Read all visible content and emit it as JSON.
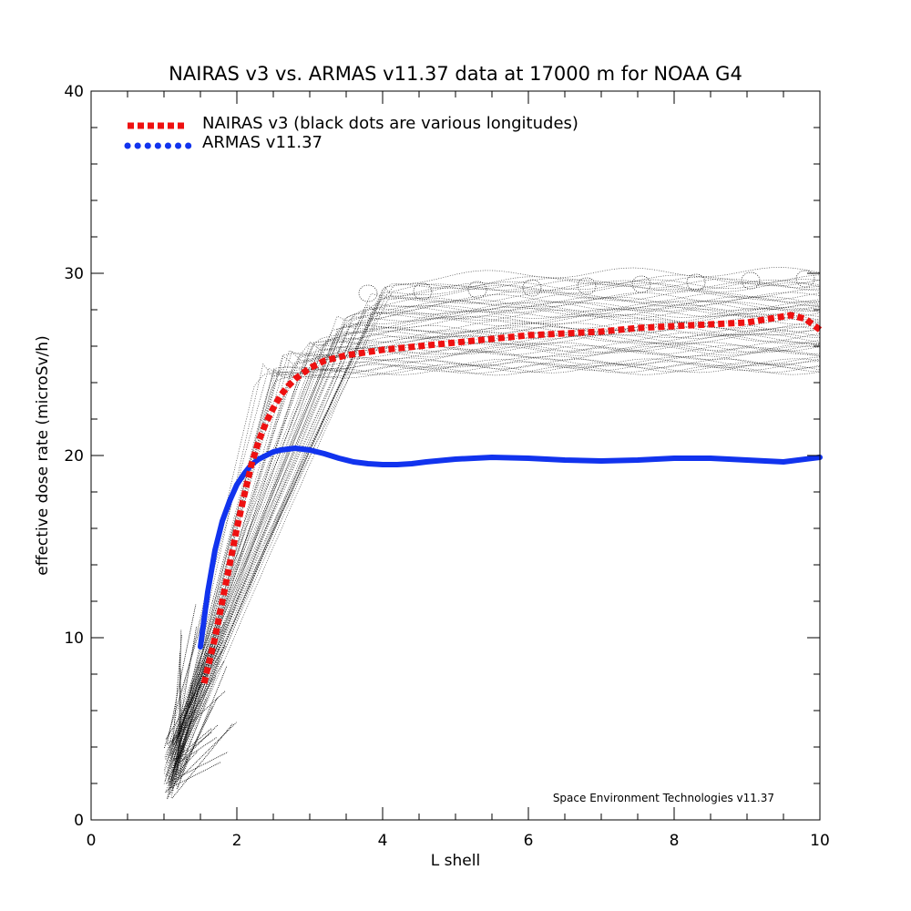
{
  "chart_data": {
    "type": "line",
    "title": "NAIRAS  v3 vs. ARMAS v11.37 data at 17000 m for NOAA G4",
    "xlabel": "L shell",
    "ylabel": "effective dose rate (microSv/h)",
    "xlim": [
      0,
      10
    ],
    "ylim": [
      0,
      40
    ],
    "x_ticks": [
      "0",
      "2",
      "4",
      "6",
      "8",
      "10"
    ],
    "y_ticks": [
      "0",
      "10",
      "20",
      "30",
      "40"
    ],
    "grid": false,
    "legend_position": "top-left",
    "credit": "Space Environment Technologies v11.37",
    "colors": {
      "nairas": "#ee1111",
      "armas": "#1133ee",
      "scatter": "#000000"
    },
    "series": [
      {
        "name": "NAIRAS v3 (black dots are various longitudes)",
        "style": "dotted",
        "x": [
          1.55,
          1.7,
          1.8,
          1.9,
          2.0,
          2.1,
          2.2,
          2.3,
          2.4,
          2.5,
          2.6,
          2.7,
          2.8,
          3.0,
          3.2,
          3.5,
          4.0,
          4.5,
          5.0,
          5.5,
          6.0,
          6.5,
          7.0,
          7.5,
          8.0,
          8.5,
          9.0,
          9.3,
          9.6,
          9.8,
          10.0
        ],
        "y": [
          7.5,
          10.0,
          12.0,
          14.0,
          16.0,
          17.8,
          19.5,
          20.8,
          21.8,
          22.6,
          23.3,
          23.8,
          24.2,
          24.8,
          25.2,
          25.5,
          25.8,
          26.0,
          26.2,
          26.4,
          26.6,
          26.7,
          26.8,
          27.0,
          27.1,
          27.2,
          27.3,
          27.5,
          27.7,
          27.5,
          26.9
        ]
      },
      {
        "name": "ARMAS v11.37",
        "style": "solid",
        "x": [
          1.5,
          1.6,
          1.7,
          1.8,
          1.9,
          2.0,
          2.1,
          2.2,
          2.3,
          2.4,
          2.5,
          2.6,
          2.7,
          2.8,
          3.0,
          3.2,
          3.4,
          3.6,
          3.8,
          4.0,
          4.2,
          4.4,
          4.6,
          5.0,
          5.5,
          6.0,
          6.5,
          7.0,
          7.5,
          8.0,
          8.5,
          9.0,
          9.5,
          10.0
        ],
        "y": [
          9.5,
          12.5,
          14.8,
          16.4,
          17.5,
          18.4,
          19.0,
          19.5,
          19.8,
          20.0,
          20.2,
          20.3,
          20.35,
          20.4,
          20.3,
          20.1,
          19.85,
          19.65,
          19.55,
          19.5,
          19.5,
          19.55,
          19.65,
          19.8,
          19.9,
          19.85,
          19.75,
          19.7,
          19.75,
          19.85,
          19.85,
          19.75,
          19.65,
          19.9
        ]
      }
    ]
  }
}
